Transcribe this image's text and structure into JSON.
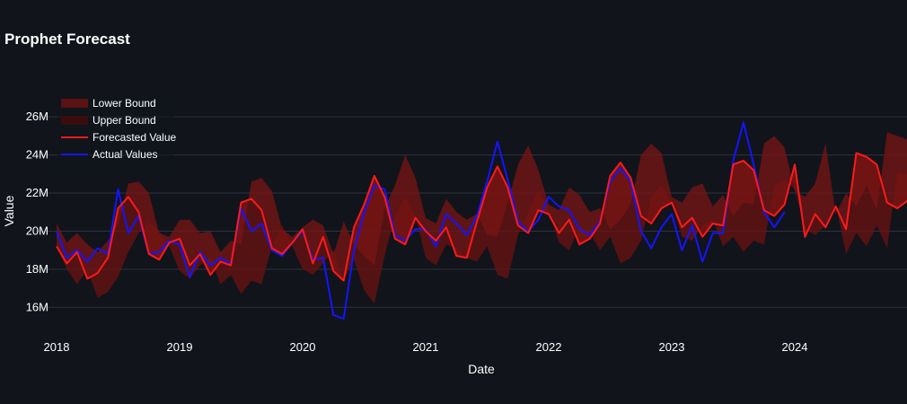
{
  "chart_data": {
    "type": "line",
    "title": "Prophet Forecast",
    "xlabel": "Date",
    "ylabel": "Value",
    "x_ticks": [
      "2018",
      "2019",
      "2020",
      "2021",
      "2022",
      "2023",
      "2024"
    ],
    "y_ticks": [
      "16M",
      "18M",
      "20M",
      "22M",
      "24M",
      "26M"
    ],
    "y_tick_values": [
      16,
      18,
      20,
      22,
      24,
      26
    ],
    "ylim": [
      14.6,
      27.8
    ],
    "xlim": [
      "2018-01",
      "2024-12"
    ],
    "legend_position": "top-left",
    "grid": true,
    "series": [
      {
        "name": "Lower Bound",
        "color": "#5a1212",
        "values": [
          19.2,
          18.0,
          17.2,
          18.0,
          16.5,
          16.8,
          17.6,
          18.9,
          19.9,
          20.5,
          20.0,
          19.2,
          17.9,
          17.5,
          18.2,
          18.6,
          17.2,
          17.7,
          16.7,
          17.4,
          17.2,
          19.2,
          20.3,
          19.2,
          18.0,
          17.7,
          18.3,
          19.0,
          17.4,
          18.5,
          16.9,
          16.2,
          18.7,
          20.8,
          21.8,
          20.8,
          18.6,
          18.2,
          19.3,
          19.1,
          18.6,
          18.4,
          19.2,
          17.7,
          17.5,
          19.8,
          21.0,
          22.2,
          21.1,
          19.4,
          19.0,
          20.2,
          19.9,
          19.0,
          19.7,
          18.3,
          18.6,
          19.5,
          21.8,
          22.4,
          21.5,
          19.7,
          19.5,
          20.3,
          20.6,
          19.2,
          19.7,
          18.9,
          19.5,
          19.3,
          22.4,
          22.7,
          22.2,
          20.1,
          19.8,
          20.3,
          21.4,
          18.8,
          19.9,
          19.2,
          20.3,
          19.1,
          23.1,
          23.0,
          22.6,
          20.7,
          20.4,
          20.6
        ]
      },
      {
        "name": "Upper Bound",
        "color": "#3a0d0d",
        "values": [
          20.4,
          19.4,
          19.9,
          19.3,
          18.9,
          19.5,
          20.3,
          22.5,
          22.6,
          22.0,
          19.9,
          19.7,
          20.6,
          20.6,
          19.9,
          20.0,
          18.9,
          19.5,
          19.3,
          22.6,
          22.8,
          22.1,
          20.1,
          19.7,
          20.2,
          20.6,
          20.3,
          18.8,
          20.5,
          19.3,
          18.7,
          18.2,
          21.2,
          22.4,
          24.0,
          22.8,
          20.7,
          20.4,
          21.7,
          21.0,
          20.6,
          20.9,
          19.8,
          19.7,
          21.5,
          23.5,
          24.5,
          23.2,
          21.4,
          21.1,
          22.3,
          21.9,
          21.0,
          21.2,
          20.1,
          20.6,
          21.4,
          24.0,
          24.6,
          24.1,
          21.8,
          21.5,
          22.3,
          22.5,
          21.3,
          21.9,
          20.8,
          21.5,
          21.4,
          24.6,
          25.0,
          24.4,
          22.1,
          21.8,
          22.5,
          24.6,
          20.9,
          22.0,
          21.3,
          22.4,
          21.1,
          25.2,
          25.0,
          24.8,
          22.8,
          22.5,
          22.7
        ]
      },
      {
        "name": "Forecasted Value",
        "color": "#ff1a1a",
        "values": [
          19.2,
          18.3,
          18.9,
          17.5,
          17.8,
          18.6,
          21.2,
          21.8,
          21.0,
          18.8,
          18.5,
          19.4,
          19.6,
          18.2,
          18.8,
          17.7,
          18.4,
          18.2,
          21.5,
          21.7,
          21.1,
          19.1,
          18.8,
          19.4,
          20.1,
          18.3,
          19.7,
          17.9,
          17.4,
          20.2,
          21.4,
          22.9,
          21.8,
          19.6,
          19.3,
          20.7,
          20.0,
          19.5,
          20.2,
          18.7,
          18.6,
          20.5,
          22.3,
          23.4,
          22.3,
          20.3,
          19.9,
          21.1,
          20.9,
          19.9,
          20.6,
          19.3,
          19.6,
          20.4,
          22.9,
          23.6,
          22.8,
          20.8,
          20.4,
          21.2,
          21.5,
          20.2,
          20.7,
          19.7,
          20.4,
          20.3,
          23.5,
          23.7,
          23.2,
          21.1,
          20.8,
          21.4,
          23.5,
          19.7,
          20.9,
          20.2,
          21.3,
          20.1,
          24.1,
          23.9,
          23.5,
          21.5,
          21.2,
          21.6
        ]
      },
      {
        "name": "Actual Values",
        "color": "#1414ff",
        "values": [
          20.0,
          18.6,
          19.0,
          18.4,
          19.1,
          18.8,
          22.2,
          19.9,
          20.8,
          18.8,
          18.9,
          19.5,
          19.3,
          17.6,
          18.9,
          18.2,
          18.6,
          18.3,
          21.2,
          20.0,
          20.4,
          19.0,
          18.7,
          19.4,
          20.0,
          18.5,
          18.6,
          15.6,
          15.4,
          19.0,
          21.0,
          22.4,
          22.2,
          19.8,
          19.5,
          20.1,
          20.1,
          19.2,
          20.9,
          20.4,
          19.8,
          20.8,
          22.6,
          24.7,
          22.7,
          20.5,
          20.0,
          20.6,
          21.8,
          21.3,
          21.1,
          20.1,
          19.8,
          20.5,
          22.6,
          23.3,
          22.6,
          20.0,
          19.1,
          20.2,
          20.9,
          19.0,
          20.3,
          18.4,
          19.9,
          19.9,
          23.7,
          25.7,
          23.5,
          21.0,
          20.2,
          21.0,
          null,
          null,
          null,
          null,
          null,
          null,
          null,
          null,
          null,
          null,
          null,
          null
        ]
      }
    ]
  }
}
